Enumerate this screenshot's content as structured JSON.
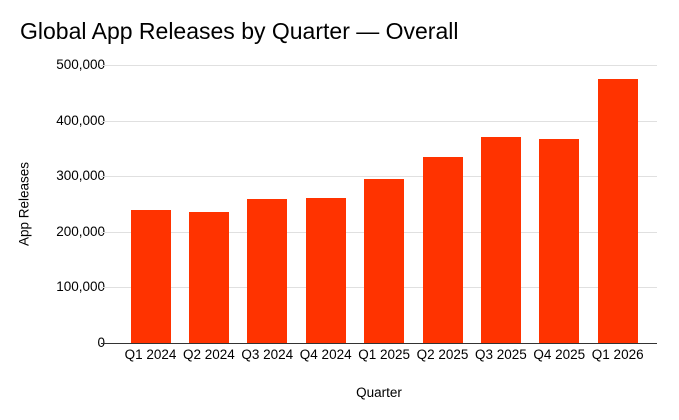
{
  "chart_data": {
    "type": "bar",
    "title": "Global App Releases by Quarter — Overall",
    "xlabel": "Quarter",
    "ylabel": "App Releases",
    "categories": [
      "Q1 2024",
      "Q2 2024",
      "Q3 2024",
      "Q4 2024",
      "Q1 2025",
      "Q2 2025",
      "Q3 2025",
      "Q4 2025",
      "Q1 2026"
    ],
    "values": [
      240000,
      236000,
      259000,
      261000,
      295000,
      335000,
      371000,
      367000,
      474000
    ],
    "ylim": [
      0,
      500000
    ],
    "ytick_interval": 100000,
    "ytick_labels": [
      "0",
      "100,000",
      "200,000",
      "300,000",
      "400,000",
      "500,000"
    ],
    "grid": true,
    "legend": "none",
    "bar_color": "#FF3300",
    "gridline_color": "#E0E0E0",
    "axis_line_color": "#333333",
    "text_color": "#000000",
    "background_color": "#FFFFFF"
  }
}
